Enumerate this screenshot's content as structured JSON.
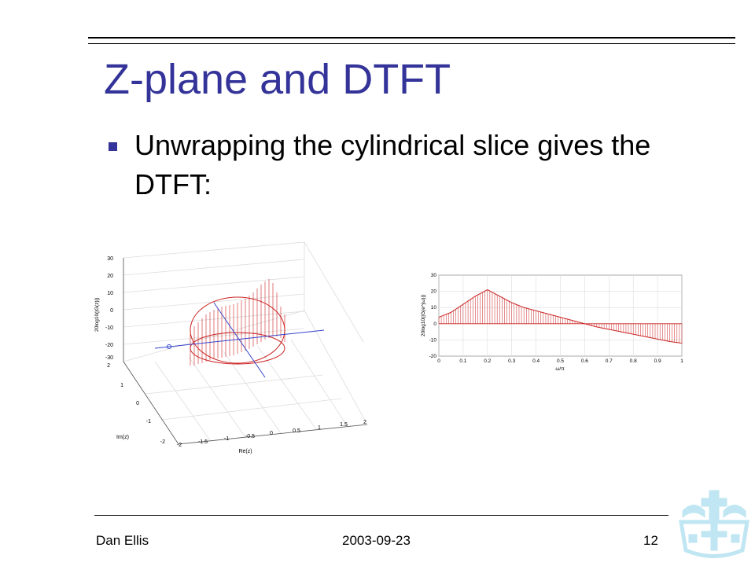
{
  "slide": {
    "title": "Z-plane and DTFT",
    "bullet": "Unwrapping the cylindrical slice gives the DTFT:"
  },
  "footer": {
    "author": "Dan Ellis",
    "date": "2003-09-23",
    "page": "12"
  },
  "colors": {
    "title": "#333399",
    "bullet": "#333399",
    "plot_red": "#cc2222",
    "plot_blue": "#3344cc",
    "logo": "#bfe6f2"
  },
  "logo_icon": "university-crown-logo-icon",
  "chart_data": [
    {
      "type": "area",
      "kind": "3d-surface-slice",
      "title": "",
      "xlabel": "Re(z)",
      "ylabel": "Im(z)",
      "zlabel": "20log10(|G(z)|)",
      "x_ticks": [
        "-2",
        "-1.5",
        "-1",
        "-0.5",
        "0",
        "0.5",
        "1",
        "1.5",
        "2"
      ],
      "y_ticks": [
        "-2",
        "-1",
        "0",
        "1",
        "2"
      ],
      "z_ticks": [
        "30",
        "20",
        "10",
        "0",
        "-10",
        "-20",
        "-30"
      ],
      "xlim": [
        -2,
        2
      ],
      "ylim": [
        -2,
        2
      ],
      "zlim": [
        -30,
        30
      ],
      "grid": true
    },
    {
      "type": "area",
      "title": "",
      "xlabel": "ω/π",
      "ylabel": "20log10(|G(e^jω)|)",
      "xlim": [
        0,
        1
      ],
      "ylim": [
        -20,
        30
      ],
      "x_ticks": [
        "0",
        "0.1",
        "0.2",
        "0.3",
        "0.4",
        "0.5",
        "0.6",
        "0.7",
        "0.8",
        "0.9",
        "1"
      ],
      "y_ticks": [
        "30",
        "20",
        "10",
        "0",
        "-10",
        "-20"
      ],
      "grid": true,
      "series": [
        {
          "x": [
            0,
            0.05,
            0.1,
            0.15,
            0.2,
            0.25,
            0.3,
            0.35,
            0.4,
            0.45,
            0.5,
            0.55,
            0.6,
            0.65,
            0.7,
            0.75,
            0.8,
            0.85,
            0.9,
            0.95,
            1
          ],
          "y": [
            4,
            7,
            12,
            17,
            21,
            17,
            13,
            10,
            8,
            6,
            4,
            2,
            0,
            -2,
            -3.5,
            -5,
            -6.5,
            -8,
            -9.5,
            -11,
            -12
          ]
        }
      ]
    }
  ]
}
